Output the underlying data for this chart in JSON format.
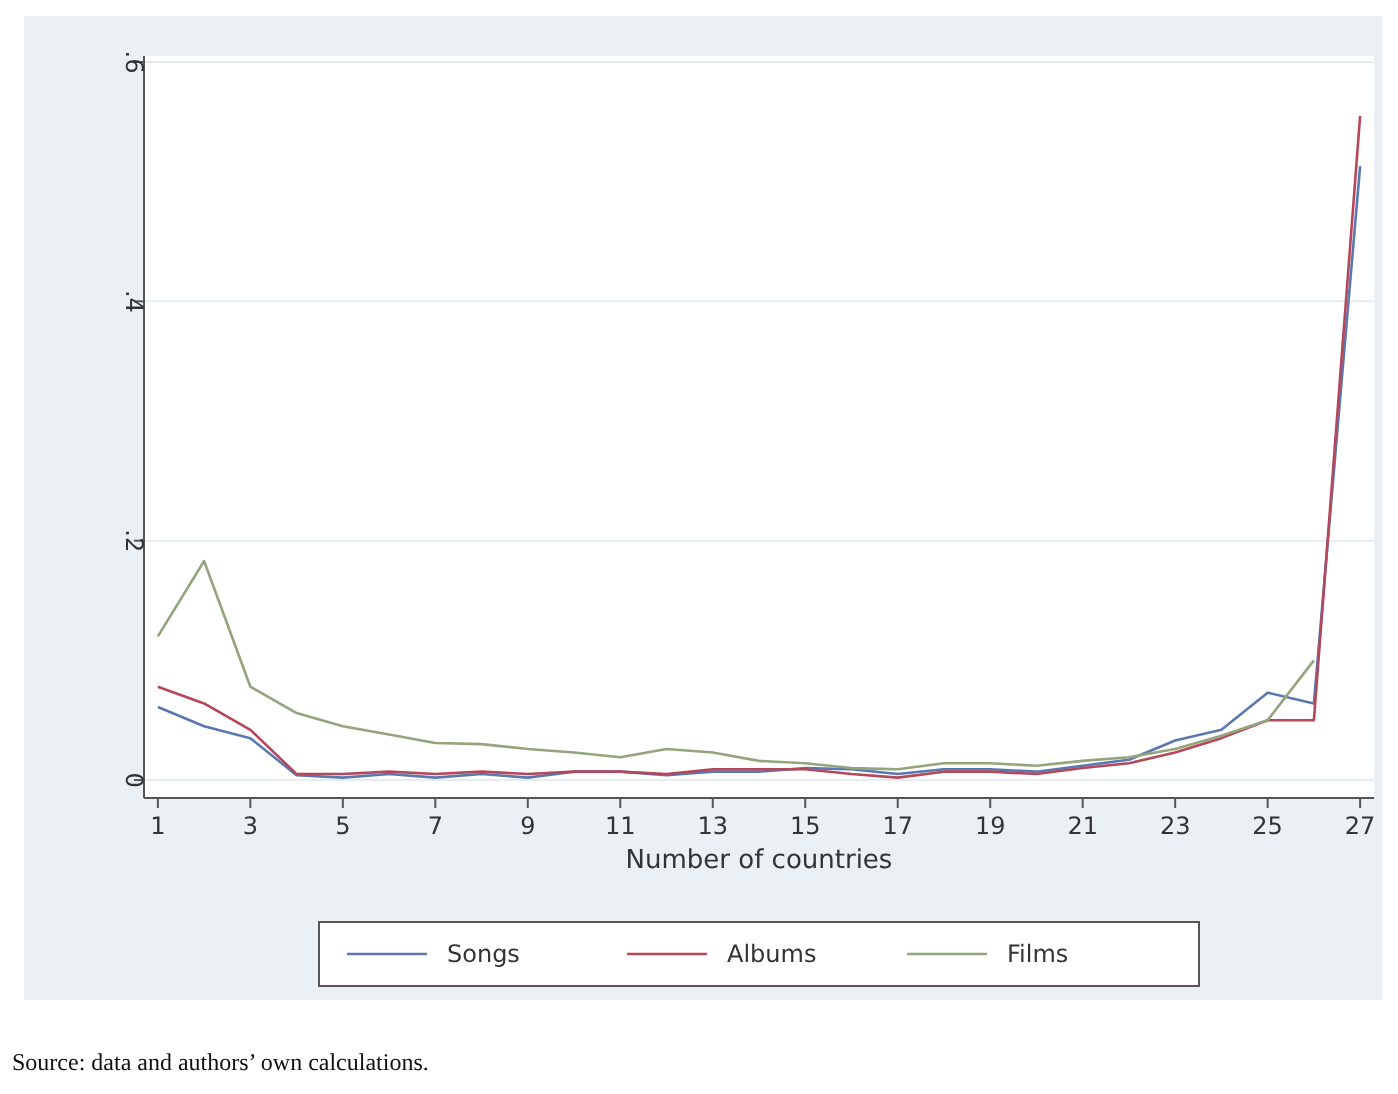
{
  "chart_data": {
    "type": "line",
    "xlabel": "Number of countries",
    "x": [
      1,
      2,
      3,
      4,
      5,
      6,
      7,
      8,
      9,
      10,
      11,
      12,
      13,
      14,
      15,
      16,
      17,
      18,
      19,
      20,
      21,
      22,
      23,
      24,
      25,
      26,
      27
    ],
    "series": [
      {
        "name": "Songs",
        "color": "#5a78b0",
        "values": [
          0.061,
          0.045,
          0.035,
          0.004,
          0.002,
          0.005,
          0.002,
          0.005,
          0.002,
          0.007,
          0.007,
          0.004,
          0.007,
          0.007,
          0.01,
          0.009,
          0.005,
          0.009,
          0.009,
          0.007,
          0.012,
          0.017,
          0.033,
          0.042,
          0.073,
          0.064,
          0.513
        ]
      },
      {
        "name": "Albums",
        "color": "#b5475a",
        "values": [
          0.078,
          0.064,
          0.042,
          0.005,
          0.005,
          0.007,
          0.005,
          0.007,
          0.005,
          0.007,
          0.007,
          0.005,
          0.009,
          0.009,
          0.009,
          0.005,
          0.002,
          0.007,
          0.007,
          0.005,
          0.01,
          0.014,
          0.023,
          0.035,
          0.05,
          0.05,
          0.555
        ]
      },
      {
        "name": "Films",
        "color": "#93a57c",
        "values": [
          0.12,
          0.183,
          0.078,
          0.056,
          0.045,
          0.038,
          0.031,
          0.03,
          0.026,
          0.023,
          0.019,
          0.026,
          0.023,
          0.016,
          0.014,
          0.01,
          0.009,
          0.014,
          0.014,
          0.012,
          0.016,
          0.019,
          0.026,
          0.037,
          0.05,
          0.1,
          null
        ]
      }
    ],
    "xlim": [
      0.7,
      27.3
    ],
    "xticks": [
      1,
      3,
      5,
      7,
      9,
      11,
      13,
      15,
      17,
      19,
      21,
      23,
      25,
      27
    ],
    "ylim": [
      -0.015,
      0.605
    ],
    "yticks": [
      0,
      {
        "value": 0.2,
        "label": ".2"
      },
      {
        "value": 0.4,
        "label": ".4"
      },
      {
        "value": 0.6,
        "label": ".6"
      }
    ],
    "grid": "y",
    "legend": "bottom",
    "line_style": "solid",
    "marker": "none",
    "annotations": [
      "Source:  data and authors’ own calculations."
    ]
  }
}
